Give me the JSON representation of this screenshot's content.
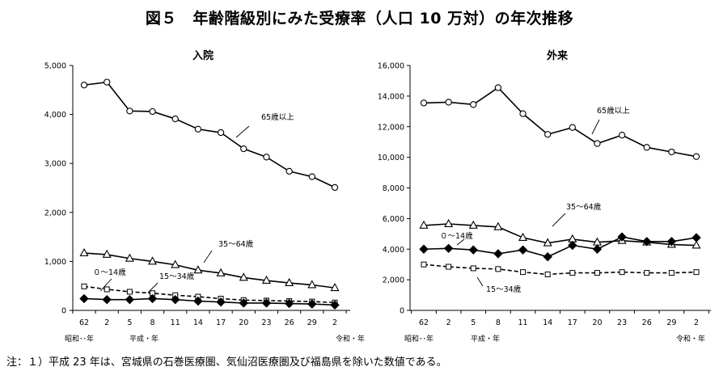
{
  "figure_title": "図５　年齢階級別にみた受療率（人口 10 万対）の年次推移",
  "footnote": "注：１）平成 23 年は、宮城県の石巻医療圏、気仙沼医療圏及び福島県を除いた数値である。",
  "chart_data": [
    {
      "type": "line",
      "title": "入院",
      "categories": [
        "62",
        "2",
        "5",
        "8",
        "11",
        "14",
        "17",
        "20",
        "23",
        "26",
        "29",
        "2"
      ],
      "era_labels": [
        "昭和･･年",
        "平成・年",
        "令和・年"
      ],
      "ylim": [
        0,
        5000
      ],
      "yticks": [
        0,
        1000,
        2000,
        3000,
        4000,
        5000
      ],
      "ytick_labels": [
        "0",
        "1,000",
        "2,000",
        "3,000",
        "4,000",
        "5,000"
      ],
      "grid": false,
      "series": [
        {
          "name": "65歳以上",
          "marker": "circle",
          "dash": false,
          "values": [
            4600,
            4660,
            4070,
            4060,
            3910,
            3700,
            3630,
            3300,
            3130,
            2840,
            2730,
            2510
          ]
        },
        {
          "name": "35～64歳",
          "marker": "triangle",
          "dash": false,
          "values": [
            1170,
            1140,
            1060,
            1000,
            930,
            820,
            760,
            670,
            610,
            560,
            520,
            460
          ]
        },
        {
          "name": "15～34歳",
          "marker": "square",
          "dash": true,
          "values": [
            490,
            430,
            380,
            350,
            310,
            280,
            240,
            210,
            200,
            190,
            180,
            160
          ]
        },
        {
          "name": "０～14歳",
          "marker": "diamond",
          "dash": false,
          "values": [
            240,
            220,
            220,
            240,
            220,
            190,
            170,
            150,
            150,
            140,
            130,
            110
          ]
        }
      ]
    },
    {
      "type": "line",
      "title": "外来",
      "categories": [
        "62",
        "2",
        "5",
        "8",
        "11",
        "14",
        "17",
        "20",
        "23",
        "26",
        "29",
        "2"
      ],
      "era_labels": [
        "昭和･･年",
        "平成・年",
        "令和・年"
      ],
      "ylim": [
        0,
        16000
      ],
      "yticks": [
        0,
        2000,
        4000,
        6000,
        8000,
        10000,
        12000,
        14000,
        16000
      ],
      "ytick_labels": [
        "0",
        "2,000",
        "4,000",
        "6,000",
        "8,000",
        "10,000",
        "12,000",
        "14,000",
        "16,000"
      ],
      "grid": false,
      "series": [
        {
          "name": "65歳以上",
          "marker": "circle",
          "dash": false,
          "values": [
            13550,
            13600,
            13450,
            14550,
            12850,
            11500,
            11950,
            10900,
            11450,
            10650,
            10350,
            10050
          ]
        },
        {
          "name": "35～64歳",
          "marker": "triangle",
          "dash": false,
          "values": [
            5550,
            5650,
            5550,
            5450,
            4750,
            4400,
            4650,
            4450,
            4550,
            4450,
            4300,
            4250
          ]
        },
        {
          "name": "０～14歳",
          "marker": "diamond",
          "dash": false,
          "values": [
            4000,
            4050,
            3950,
            3700,
            3950,
            3500,
            4250,
            4000,
            4800,
            4500,
            4500,
            4750
          ]
        },
        {
          "name": "15～34歳",
          "marker": "square",
          "dash": true,
          "values": [
            3000,
            2850,
            2750,
            2700,
            2500,
            2350,
            2450,
            2450,
            2500,
            2450,
            2450,
            2500
          ]
        }
      ]
    }
  ]
}
